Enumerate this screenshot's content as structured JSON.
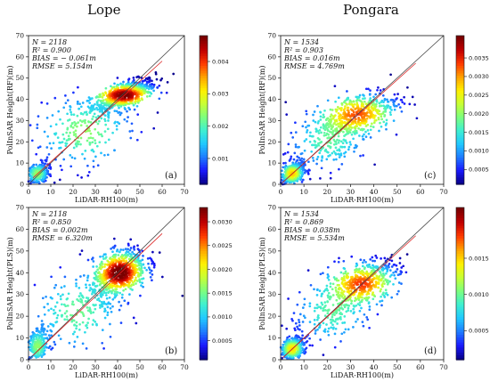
{
  "figure": {
    "column_titles": [
      "Lope",
      "Pongara"
    ]
  },
  "colormap": [
    "#08008a",
    "#1a1aff",
    "#1f7dff",
    "#21c9ff",
    "#3ff0d0",
    "#7dff7d",
    "#c9ff33",
    "#fff000",
    "#ffa300",
    "#ff3b00",
    "#c20000",
    "#7a0000"
  ],
  "chart_data": [
    {
      "type": "scatter",
      "panel": "(a)",
      "site": "Lope",
      "xlabel": "LiDAR-RH100(m)",
      "ylabel": "PolInSAR Height(RF)(m)",
      "xlim": [
        0,
        70
      ],
      "ylim": [
        0,
        70
      ],
      "xticks": [
        "0",
        "10",
        "20",
        "30",
        "40",
        "50",
        "60",
        "70"
      ],
      "yticks": [
        "0",
        "10",
        "20",
        "30",
        "40",
        "50",
        "60",
        "70"
      ],
      "stats": {
        "n": "N = 2118",
        "r2": "R² = 0.900",
        "bias": "BIAS = − 0.061m",
        "rmse": "RMSE = 5.154m"
      },
      "fit_line": [
        [
          2,
          3
        ],
        [
          60,
          58
        ]
      ],
      "colorbar_ticks": [
        0.001,
        0.002,
        0.003,
        0.004
      ],
      "colorbar_labels": [
        "0.001",
        "0.002",
        "0.003",
        "0.004"
      ],
      "colorbar_range": [
        0.0002,
        0.0048
      ],
      "clusters": [
        {
          "cx": 43,
          "cy": 42,
          "sx": 7,
          "sy": 2.8,
          "n": 700
        },
        {
          "cx": 4,
          "cy": 5,
          "sx": 2.5,
          "sy": 2.5,
          "n": 250
        },
        {
          "cx": 25,
          "cy": 25,
          "sx": 12,
          "sy": 9,
          "n": 250
        }
      ]
    },
    {
      "type": "scatter",
      "panel": "(c)",
      "site": "Pongara",
      "xlabel": "LiDAR-RH100(m)",
      "ylabel": "PolInSAR Height(RF)(m)",
      "xlim": [
        0,
        70
      ],
      "ylim": [
        0,
        70
      ],
      "xticks": [
        "0",
        "10",
        "20",
        "30",
        "40",
        "50",
        "60",
        "70"
      ],
      "yticks": [
        "0",
        "10",
        "20",
        "30",
        "40",
        "50",
        "60",
        "70"
      ],
      "stats": {
        "n": "N = 1534",
        "r2": "R² = 0.903",
        "bias": "BIAS = 0.016m",
        "rmse": "RMSE = 4.769m"
      },
      "fit_line": [
        [
          1,
          1
        ],
        [
          58,
          57
        ]
      ],
      "colorbar_ticks": [
        0.0005,
        0.001,
        0.0015,
        0.002,
        0.0025,
        0.003,
        0.0035
      ],
      "colorbar_labels": [
        "0.0005",
        "0.0010",
        "0.0015",
        "0.0020",
        "0.0025",
        "0.0030",
        "0.0035"
      ],
      "colorbar_range": [
        0.0001,
        0.0041
      ],
      "clusters": [
        {
          "cx": 5,
          "cy": 5,
          "sx": 2.5,
          "sy": 2.5,
          "n": 400
        },
        {
          "cx": 33,
          "cy": 33,
          "sx": 9,
          "sy": 5,
          "n": 500
        },
        {
          "cx": 20,
          "cy": 20,
          "sx": 9,
          "sy": 7,
          "n": 200
        }
      ]
    },
    {
      "type": "scatter",
      "panel": "(b)",
      "site": "Lope",
      "xlabel": "LiDAR-RH100(m)",
      "ylabel": "PolInSAR Height(PLS)(m)",
      "xlim": [
        0,
        70
      ],
      "ylim": [
        0,
        70
      ],
      "xticks": [
        "0",
        "10",
        "20",
        "30",
        "40",
        "50",
        "60",
        "70"
      ],
      "yticks": [
        "0",
        "10",
        "20",
        "30",
        "40",
        "50",
        "60",
        "70"
      ],
      "stats": {
        "n": "N = 2118",
        "r2": "R² = 0.850",
        "bias": "BIAS = 0.002m",
        "rmse": "RMSE = 6.320m"
      },
      "fit_line": [
        [
          2,
          2
        ],
        [
          60,
          58
        ]
      ],
      "colorbar_ticks": [
        0.0005,
        0.001,
        0.0015,
        0.002,
        0.0025,
        0.003
      ],
      "colorbar_labels": [
        "0.0005",
        "0.0010",
        "0.0015",
        "0.0020",
        "0.0025",
        "0.0030"
      ],
      "colorbar_range": [
        0.0001,
        0.0033
      ],
      "clusters": [
        {
          "cx": 41,
          "cy": 40,
          "sx": 6,
          "sy": 5,
          "n": 750
        },
        {
          "cx": 4,
          "cy": 6,
          "sx": 2.5,
          "sy": 4,
          "n": 230
        },
        {
          "cx": 22,
          "cy": 22,
          "sx": 11,
          "sy": 10,
          "n": 220
        }
      ]
    },
    {
      "type": "scatter",
      "panel": "(d)",
      "site": "Pongara",
      "xlabel": "LiDAR-RH100(m)",
      "ylabel": "PolInSAR Height(PLS)(m)",
      "xlim": [
        0,
        70
      ],
      "ylim": [
        0,
        70
      ],
      "xticks": [
        "0",
        "10",
        "20",
        "30",
        "40",
        "50",
        "60",
        "70"
      ],
      "yticks": [
        "0",
        "10",
        "20",
        "30",
        "40",
        "50",
        "60",
        "70"
      ],
      "stats": {
        "n": "N = 1534",
        "r2": "R² = 0.869",
        "bias": "BIAS = 0.038m",
        "rmse": "RMSE = 5.534m"
      },
      "fit_line": [
        [
          1,
          1
        ],
        [
          58,
          57
        ]
      ],
      "colorbar_ticks": [
        0.0005,
        0.001,
        0.0015
      ],
      "colorbar_labels": [
        "0.0005",
        "0.0010",
        "0.0015"
      ],
      "colorbar_range": [
        0.0001,
        0.0022
      ],
      "clusters": [
        {
          "cx": 5,
          "cy": 5,
          "sx": 2.5,
          "sy": 2.5,
          "n": 380
        },
        {
          "cx": 35,
          "cy": 35,
          "sx": 8,
          "sy": 5,
          "n": 520
        },
        {
          "cx": 22,
          "cy": 22,
          "sx": 9,
          "sy": 8,
          "n": 200
        }
      ]
    }
  ]
}
